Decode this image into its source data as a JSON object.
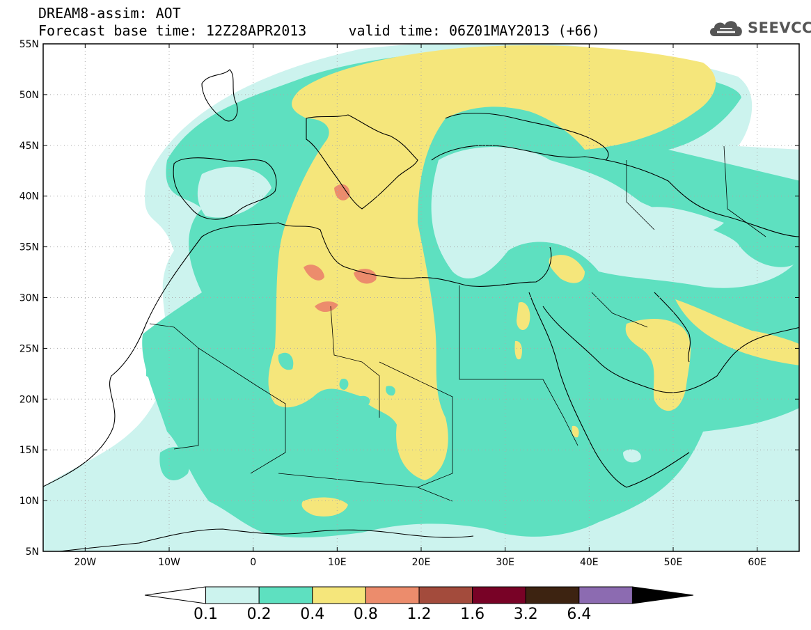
{
  "header": {
    "title_line1": "DREAM8-assim: AOT",
    "title_line2": "Forecast base time: 12Z28APR2013     valid time: 06Z01MAY2013 (+66)"
  },
  "logo": {
    "icon": "cloud-icon",
    "text": "SEEVCCC"
  },
  "map": {
    "lon_range": [
      -25,
      65
    ],
    "lat_range": [
      5,
      55
    ],
    "grid": true,
    "lat_ticks": [
      {
        "value": 55,
        "label": "55N"
      },
      {
        "value": 50,
        "label": "50N"
      },
      {
        "value": 45,
        "label": "45N"
      },
      {
        "value": 40,
        "label": "40N"
      },
      {
        "value": 35,
        "label": "35N"
      },
      {
        "value": 30,
        "label": "30N"
      },
      {
        "value": 25,
        "label": "25N"
      },
      {
        "value": 20,
        "label": "20N"
      },
      {
        "value": 15,
        "label": "15N"
      },
      {
        "value": 10,
        "label": "10N"
      },
      {
        "value": 5,
        "label": "5N"
      }
    ],
    "lon_ticks": [
      {
        "value": -20,
        "label": "20W"
      },
      {
        "value": -10,
        "label": "10W"
      },
      {
        "value": 0,
        "label": "0"
      },
      {
        "value": 10,
        "label": "10E"
      },
      {
        "value": 20,
        "label": "20E"
      },
      {
        "value": 30,
        "label": "30E"
      },
      {
        "value": 40,
        "label": "40E"
      },
      {
        "value": 50,
        "label": "50E"
      },
      {
        "value": 60,
        "label": "60E"
      }
    ]
  },
  "colorbar": {
    "labels": [
      "0.1",
      "0.2",
      "0.4",
      "0.8",
      "1.2",
      "1.6",
      "3.2",
      "6.4"
    ],
    "colors": [
      "#ffffff",
      "#ccf3ee",
      "#5ee0c0",
      "#f5e67b",
      "#ec8c6c",
      "#a34b3c",
      "#780226",
      "#3d2311",
      "#8c6bb1"
    ],
    "extend": "both"
  },
  "colors": {
    "level_0_1": "#ccf3ee",
    "level_0_2": "#5ee0c0",
    "level_0_4": "#f5e67b",
    "level_0_8": "#ec8c6c"
  }
}
